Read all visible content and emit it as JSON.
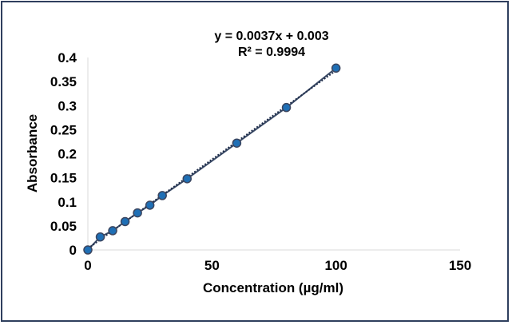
{
  "chart_data": {
    "type": "scatter",
    "title": "",
    "xlabel": "Concentration (µg/ml)",
    "ylabel": "Absorbance",
    "xlim": [
      0,
      150
    ],
    "ylim": [
      0,
      0.4
    ],
    "x_ticks": [
      "0",
      "50",
      "100",
      "150"
    ],
    "y_ticks": [
      "0",
      "0.05",
      "0.1",
      "0.15",
      "0.2",
      "0.25",
      "0.3",
      "0.35",
      "0.4"
    ],
    "grid": false,
    "legend": "none",
    "series": [
      {
        "points": [
          {
            "x": 0,
            "y": 0.0
          },
          {
            "x": 5,
            "y": 0.027
          },
          {
            "x": 10,
            "y": 0.04
          },
          {
            "x": 15,
            "y": 0.059
          },
          {
            "x": 20,
            "y": 0.077
          },
          {
            "x": 25,
            "y": 0.093
          },
          {
            "x": 30,
            "y": 0.113
          },
          {
            "x": 40,
            "y": 0.148
          },
          {
            "x": 60,
            "y": 0.222
          },
          {
            "x": 80,
            "y": 0.296
          },
          {
            "x": 100,
            "y": 0.378
          }
        ]
      }
    ],
    "trendline": {
      "type": "linear",
      "slope": 0.0037,
      "intercept": 0.003,
      "equation": "y = 0.0037x + 0.003",
      "r_squared": "R² = 0.9994"
    },
    "colors": {
      "marker": "#1f6fb5",
      "line": "#3a4a66",
      "trend": "#1f2d4a",
      "frame": "#2f3f5e"
    }
  }
}
